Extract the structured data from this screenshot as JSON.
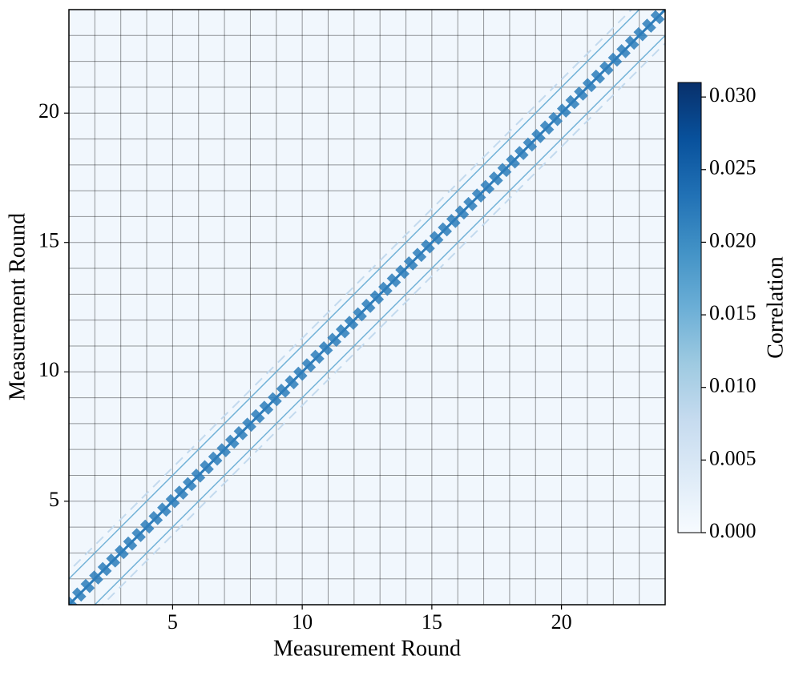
{
  "chart_data": {
    "type": "heatmap",
    "xlabel": "Measurement Round",
    "ylabel": "Measurement Round",
    "colorbar_label": "Correlation",
    "xlim": [
      1,
      24
    ],
    "ylim": [
      1,
      24
    ],
    "xticks": [
      5,
      10,
      15,
      20
    ],
    "yticks": [
      5,
      10,
      15,
      20
    ],
    "grid": true,
    "colormap": [
      "#f7fbff",
      "#deebf7",
      "#c6dbef",
      "#9ecae1",
      "#6baed6",
      "#4292c6",
      "#2171b5",
      "#08519c",
      "#08306b"
    ],
    "clim": [
      0,
      0.031
    ],
    "cticks": [
      {
        "value": 0,
        "label": "0.000"
      },
      {
        "value": 0.005,
        "label": "0.005"
      },
      {
        "value": 0.01,
        "label": "0.010"
      },
      {
        "value": 0.015,
        "label": "0.015"
      },
      {
        "value": 0.02,
        "label": "0.020"
      },
      {
        "value": 0.025,
        "label": "0.025"
      },
      {
        "value": 0.03,
        "label": "0.030"
      }
    ],
    "background_value": 0.001,
    "diagonal_bands": [
      {
        "offset": -1.3,
        "value": 0.008,
        "style": "dashed"
      },
      {
        "offset": -1,
        "value": 0.015,
        "style": "solid"
      },
      {
        "offset": 0,
        "value": 0.022,
        "style": "beads"
      },
      {
        "offset": 1,
        "value": 0.015,
        "style": "solid"
      },
      {
        "offset": 1.3,
        "value": 0.008,
        "style": "dashed"
      }
    ]
  }
}
